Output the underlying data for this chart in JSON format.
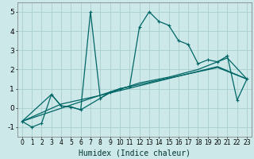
{
  "xlabel": "Humidex (Indice chaleur)",
  "bg_color": "#cce8e8",
  "grid_color": "#aacfcf",
  "line_color": "#006666",
  "xlim": [
    -0.5,
    23.5
  ],
  "ylim": [
    -1.5,
    5.5
  ],
  "xticks": [
    0,
    1,
    2,
    3,
    4,
    5,
    6,
    7,
    8,
    9,
    10,
    11,
    12,
    13,
    14,
    15,
    16,
    17,
    18,
    19,
    20,
    21,
    22,
    23
  ],
  "yticks": [
    -1,
    0,
    1,
    2,
    3,
    4,
    5
  ],
  "series1": [
    [
      0,
      -0.7
    ],
    [
      1,
      -1.0
    ],
    [
      2,
      -0.8
    ],
    [
      3,
      0.7
    ],
    [
      4,
      0.1
    ],
    [
      5,
      0.05
    ],
    [
      6,
      -0.1
    ],
    [
      7,
      5.0
    ],
    [
      8,
      0.5
    ],
    [
      9,
      0.8
    ],
    [
      10,
      1.0
    ],
    [
      11,
      1.1
    ],
    [
      12,
      4.2
    ],
    [
      13,
      5.0
    ],
    [
      14,
      4.5
    ],
    [
      15,
      4.3
    ],
    [
      16,
      3.5
    ],
    [
      17,
      3.3
    ],
    [
      18,
      2.3
    ],
    [
      19,
      2.5
    ],
    [
      20,
      2.4
    ],
    [
      21,
      2.7
    ],
    [
      22,
      0.4
    ],
    [
      23,
      1.5
    ]
  ],
  "series2": [
    [
      0,
      -0.7
    ],
    [
      3,
      0.7
    ],
    [
      4,
      0.1
    ],
    [
      5,
      0.05
    ],
    [
      6,
      -0.1
    ],
    [
      9,
      0.8
    ],
    [
      12,
      1.3
    ],
    [
      15,
      1.6
    ],
    [
      18,
      2.0
    ],
    [
      21,
      2.6
    ],
    [
      23,
      1.5
    ]
  ],
  "series3": [
    [
      0,
      -0.7
    ],
    [
      4,
      0.2
    ],
    [
      8,
      0.65
    ],
    [
      12,
      1.15
    ],
    [
      16,
      1.65
    ],
    [
      20,
      2.15
    ],
    [
      23,
      1.5
    ]
  ],
  "series4": [
    [
      0,
      -0.7
    ],
    [
      5,
      0.15
    ],
    [
      10,
      1.0
    ],
    [
      15,
      1.55
    ],
    [
      20,
      2.1
    ],
    [
      23,
      1.5
    ]
  ]
}
